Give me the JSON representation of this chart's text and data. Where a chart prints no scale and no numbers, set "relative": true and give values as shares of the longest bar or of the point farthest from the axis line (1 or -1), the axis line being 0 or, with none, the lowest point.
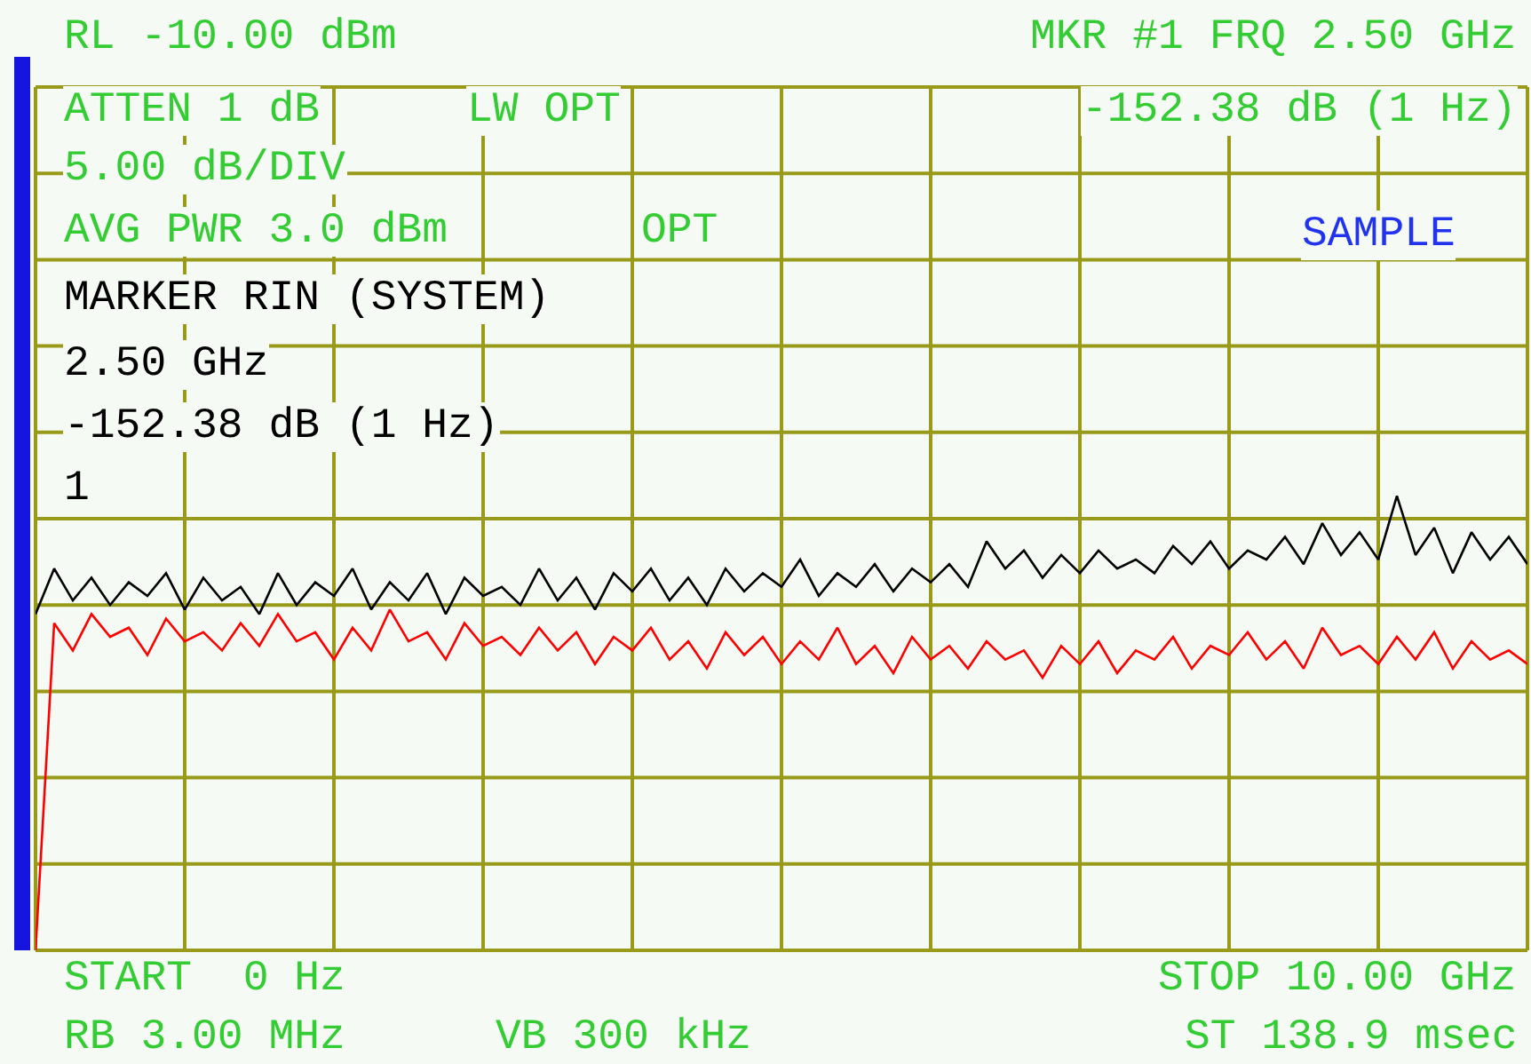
{
  "chart_data": {
    "type": "line",
    "relative": true,
    "grid": true,
    "marker": "none",
    "line_style": "solid",
    "tick_labels": false,
    "categories": [
      null,
      null,
      null,
      null,
      null,
      null,
      null,
      null,
      null,
      null,
      null,
      null,
      null,
      null,
      null,
      null,
      null,
      null,
      null,
      null,
      null,
      null,
      null,
      null,
      null,
      null,
      null,
      null,
      null,
      null,
      null,
      null,
      null,
      null,
      null,
      null,
      null,
      null,
      null,
      null,
      null,
      null,
      null,
      null,
      null,
      null,
      null,
      null,
      null,
      null,
      null,
      null,
      null,
      null,
      null,
      null,
      null,
      null,
      null,
      null,
      null,
      null,
      null,
      null,
      null,
      null,
      null,
      null,
      null,
      null,
      null,
      null,
      null,
      null,
      null,
      null,
      null,
      null,
      null,
      null,
      null
    ],
    "annotations": [
      "RL -10.00 dBm",
      "MKR #1 FRQ 2.50 GHz",
      "ATTEN 1 dB",
      "LW OPT",
      "-152.38 dB (1 Hz)",
      "5.00 dB/DIV",
      "AVG PWR 3.0 dBm",
      "OPT",
      "SAMPLE",
      "MARKER RIN (SYSTEM)",
      "2.50 GHz",
      "-152.38 dB (1 Hz)",
      "1",
      "START  0 Hz",
      "STOP 10.00 GHz",
      "RB 3.00 MHz",
      "VB 300 kHz",
      "ST 138.9 msec"
    ],
    "series": [
      {
        "color": "#000000",
        "values": [
          0.74,
          0.84,
          0.77,
          0.82,
          0.76,
          0.81,
          0.78,
          0.83,
          0.75,
          0.82,
          0.77,
          0.8,
          0.74,
          0.83,
          0.76,
          0.81,
          0.78,
          0.84,
          0.75,
          0.81,
          0.77,
          0.83,
          0.74,
          0.82,
          0.78,
          0.8,
          0.76,
          0.84,
          0.77,
          0.82,
          0.75,
          0.83,
          0.79,
          0.84,
          0.77,
          0.82,
          0.76,
          0.84,
          0.79,
          0.83,
          0.8,
          0.86,
          0.78,
          0.83,
          0.8,
          0.85,
          0.79,
          0.84,
          0.81,
          0.85,
          0.8,
          0.9,
          0.84,
          0.88,
          0.82,
          0.87,
          0.83,
          0.88,
          0.84,
          0.86,
          0.83,
          0.89,
          0.85,
          0.9,
          0.84,
          0.88,
          0.86,
          0.91,
          0.85,
          0.94,
          0.87,
          0.92,
          0.86,
          1,
          0.87,
          0.93,
          0.83,
          0.92,
          0.86,
          0.91,
          0.85
        ]
      },
      {
        "color": "#ff0000",
        "values": [
          0,
          0.72,
          0.66,
          0.74,
          0.69,
          0.71,
          0.65,
          0.73,
          0.68,
          0.7,
          0.66,
          0.72,
          0.67,
          0.74,
          0.68,
          0.7,
          0.64,
          0.71,
          0.66,
          0.75,
          0.68,
          0.7,
          0.64,
          0.72,
          0.67,
          0.69,
          0.65,
          0.71,
          0.66,
          0.7,
          0.63,
          0.69,
          0.66,
          0.71,
          0.64,
          0.68,
          0.62,
          0.7,
          0.65,
          0.69,
          0.63,
          0.68,
          0.64,
          0.71,
          0.63,
          0.67,
          0.61,
          0.69,
          0.64,
          0.67,
          0.62,
          0.68,
          0.64,
          0.66,
          0.6,
          0.67,
          0.63,
          0.68,
          0.61,
          0.66,
          0.64,
          0.69,
          0.62,
          0.67,
          0.65,
          0.7,
          0.64,
          0.68,
          0.62,
          0.71,
          0.65,
          0.67,
          0.63,
          0.69,
          0.64,
          0.7,
          0.62,
          0.68,
          0.64,
          0.66,
          0.63
        ]
      }
    ]
  }
}
